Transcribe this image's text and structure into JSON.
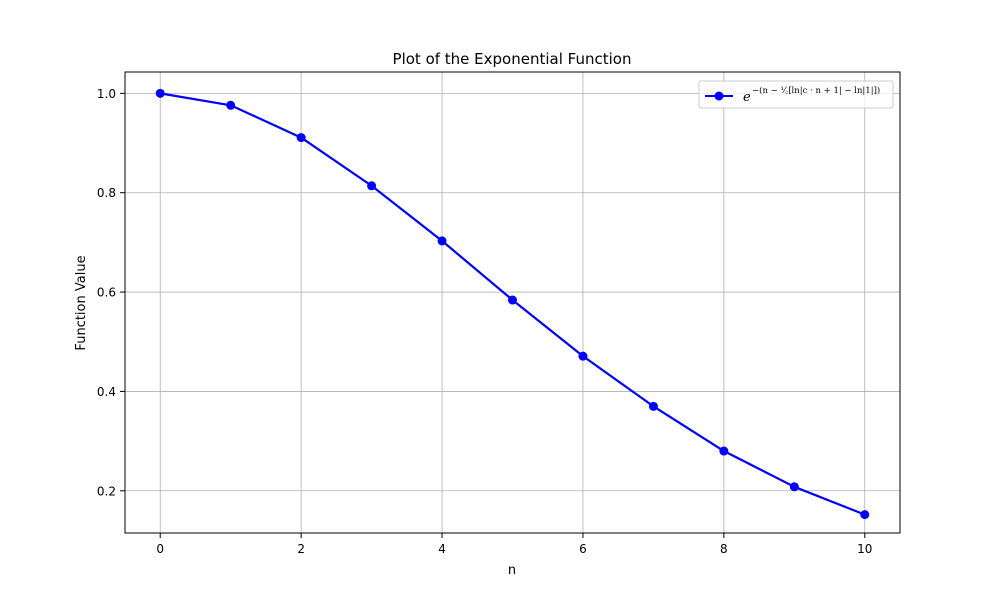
{
  "chart_data": {
    "type": "line",
    "title": "Plot of the Exponential Function",
    "xlabel": "n",
    "ylabel": "Function Value",
    "xlim": [
      -0.5,
      10.5
    ],
    "ylim": [
      0.115,
      1.043
    ],
    "x_ticks": [
      0,
      2,
      4,
      6,
      8,
      10
    ],
    "x_tick_labels": [
      "0",
      "2",
      "4",
      "6",
      "8",
      "10"
    ],
    "y_ticks": [
      0.2,
      0.4,
      0.6,
      0.8,
      1.0
    ],
    "y_tick_labels": [
      "0.2",
      "0.4",
      "0.6",
      "0.8",
      "1.0"
    ],
    "grid": true,
    "legend_position": "top-right",
    "series": [
      {
        "name": "e^{-(n - (1/c)[ln|c·n+1| - ln|1|])}",
        "legend_base": "e",
        "legend_exponent": "−(n − ¹⁄꜀[ln|c · n + 1| − ln|1|])",
        "color": "#0000ff",
        "marker": "circle",
        "x": [
          0,
          1,
          2,
          3,
          4,
          5,
          6,
          7,
          8,
          9,
          10
        ],
        "y": [
          1.0,
          0.976,
          0.911,
          0.814,
          0.703,
          0.584,
          0.471,
          0.37,
          0.28,
          0.208,
          0.152
        ]
      }
    ]
  }
}
